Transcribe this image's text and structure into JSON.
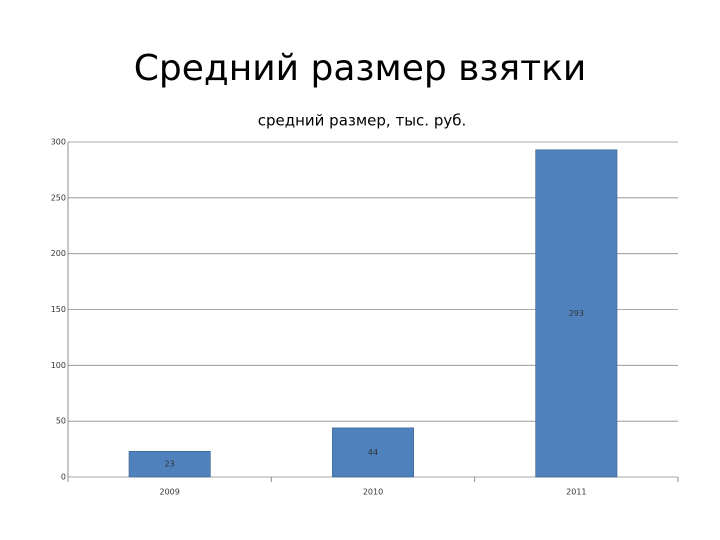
{
  "chart_data": {
    "type": "bar",
    "title": "Средний размер взятки",
    "subtitle": "средний размер, тыс. руб.",
    "categories": [
      "2009",
      "2010",
      "2011"
    ],
    "values": [
      23,
      44,
      293
    ],
    "color": "#4f81bd",
    "ylim": [
      0,
      300
    ],
    "yticks": [
      0,
      50,
      100,
      150,
      200,
      250,
      300
    ],
    "grid": true
  }
}
